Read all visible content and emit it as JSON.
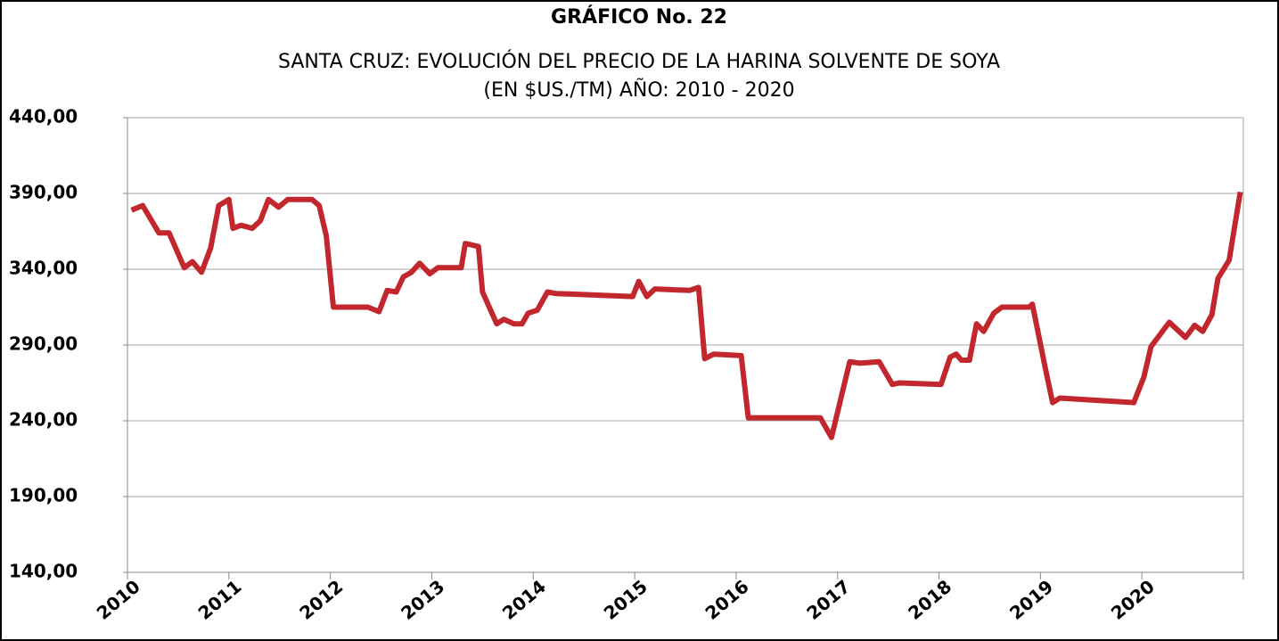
{
  "chart_data": {
    "type": "line",
    "title": "GRÁFICO No. 22",
    "subtitle": "SANTA CRUZ: EVOLUCIÓN DEL PRECIO DE LA HARINA SOLVENTE DE SOYA",
    "subtitle2": "(EN $US./TM) AÑO: 2010 - 2020",
    "xlim": [
      2010,
      2021
    ],
    "xticks": [
      2010,
      2011,
      2012,
      2013,
      2014,
      2015,
      2016,
      2017,
      2018,
      2019,
      2020
    ],
    "ylim": [
      140,
      440
    ],
    "yticks": [
      {
        "value": 140,
        "label": "140,00"
      },
      {
        "value": 190,
        "label": "190,00"
      },
      {
        "value": 240,
        "label": "240,00"
      },
      {
        "value": 290,
        "label": "290,00"
      },
      {
        "value": 340,
        "label": "340,00"
      },
      {
        "value": 390,
        "label": "390,00"
      },
      {
        "value": 440,
        "label": "440,00"
      }
    ],
    "grid": true,
    "x": [
      2010.04,
      2010.15,
      2010.31,
      2010.41,
      2010.56,
      2010.64,
      2010.73,
      2010.82,
      2010.9,
      2011.0,
      2011.04,
      2011.12,
      2011.23,
      2011.31,
      2011.39,
      2011.49,
      2011.58,
      2011.82,
      2011.89,
      2011.96,
      2012.03,
      2012.37,
      2012.48,
      2012.56,
      2012.65,
      2012.72,
      2012.8,
      2012.88,
      2012.98,
      2013.06,
      2013.29,
      2013.33,
      2013.46,
      2013.5,
      2013.64,
      2013.71,
      2013.81,
      2013.89,
      2013.95,
      2014.04,
      2014.14,
      2014.22,
      2014.98,
      2015.04,
      2015.12,
      2015.2,
      2015.54,
      2015.63,
      2015.69,
      2015.78,
      2016.05,
      2016.12,
      2016.83,
      2016.94,
      2017.12,
      2017.22,
      2017.41,
      2017.54,
      2017.61,
      2018.02,
      2018.11,
      2018.17,
      2018.22,
      2018.3,
      2018.37,
      2018.44,
      2018.54,
      2018.62,
      2018.89,
      2018.92,
      2019.05,
      2019.12,
      2019.19,
      2019.92,
      2020.02,
      2020.09,
      2020.27,
      2020.43,
      2020.52,
      2020.6,
      2020.69,
      2020.75,
      2020.86,
      2020.97
    ],
    "series": [
      {
        "color": "#c1272d",
        "values": [
          379,
          382,
          364,
          364,
          341,
          345,
          338,
          354,
          382,
          386,
          367,
          369,
          367,
          372,
          386,
          381,
          386,
          386,
          382,
          362,
          315,
          315,
          312,
          326,
          325,
          335,
          338,
          344,
          337,
          341,
          341,
          357,
          355,
          325,
          304,
          307,
          304,
          304,
          311,
          313,
          325,
          324,
          322,
          332,
          322,
          327,
          326,
          328,
          281,
          284,
          283,
          242,
          242,
          229,
          279,
          278,
          279,
          264,
          265,
          264,
          282,
          284,
          280,
          280,
          304,
          299,
          311,
          315,
          315,
          317,
          274,
          252,
          255,
          252,
          269,
          289,
          305,
          295,
          303,
          299,
          310,
          334,
          346,
          391
        ]
      }
    ]
  }
}
